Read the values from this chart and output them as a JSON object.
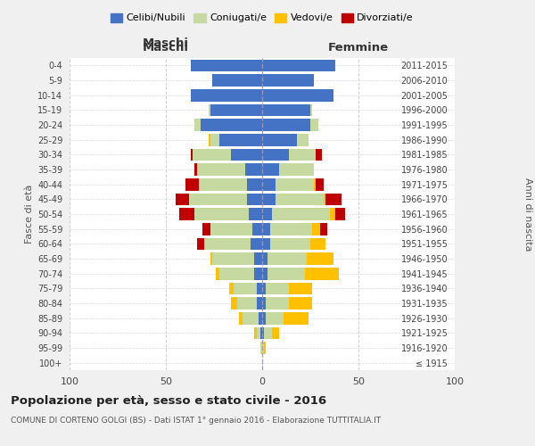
{
  "age_groups": [
    "100+",
    "95-99",
    "90-94",
    "85-89",
    "80-84",
    "75-79",
    "70-74",
    "65-69",
    "60-64",
    "55-59",
    "50-54",
    "45-49",
    "40-44",
    "35-39",
    "30-34",
    "25-29",
    "20-24",
    "15-19",
    "10-14",
    "5-9",
    "0-4"
  ],
  "birth_years": [
    "≤ 1915",
    "1916-1920",
    "1921-1925",
    "1926-1930",
    "1931-1935",
    "1936-1940",
    "1941-1945",
    "1946-1950",
    "1951-1955",
    "1956-1960",
    "1961-1965",
    "1966-1970",
    "1971-1975",
    "1976-1980",
    "1981-1985",
    "1986-1990",
    "1991-1995",
    "1996-2000",
    "2001-2005",
    "2006-2010",
    "2011-2015"
  ],
  "colors": {
    "celibi": "#4472c4",
    "coniugati": "#c5d9a0",
    "vedovi": "#ffc000",
    "divorziati": "#c00000"
  },
  "maschi": {
    "celibi": [
      0,
      0,
      1,
      2,
      3,
      3,
      4,
      4,
      6,
      5,
      7,
      8,
      8,
      9,
      16,
      22,
      32,
      27,
      37,
      26,
      37
    ],
    "coniugati": [
      0,
      1,
      2,
      8,
      10,
      12,
      18,
      22,
      24,
      22,
      28,
      30,
      25,
      25,
      20,
      5,
      3,
      1,
      0,
      0,
      0
    ],
    "vedovi": [
      0,
      0,
      1,
      2,
      3,
      2,
      2,
      1,
      0,
      0,
      0,
      0,
      0,
      0,
      0,
      1,
      0,
      0,
      0,
      0,
      0
    ],
    "divorziati": [
      0,
      0,
      0,
      0,
      0,
      0,
      0,
      0,
      4,
      4,
      8,
      7,
      7,
      1,
      1,
      0,
      0,
      0,
      0,
      0,
      0
    ]
  },
  "femmine": {
    "celibi": [
      0,
      0,
      1,
      2,
      2,
      2,
      3,
      3,
      4,
      4,
      5,
      7,
      7,
      9,
      14,
      18,
      25,
      25,
      37,
      27,
      38
    ],
    "coniugati": [
      0,
      1,
      4,
      9,
      12,
      12,
      19,
      20,
      21,
      22,
      30,
      25,
      20,
      18,
      14,
      6,
      4,
      1,
      0,
      0,
      0
    ],
    "vedovi": [
      0,
      1,
      4,
      13,
      12,
      12,
      18,
      14,
      8,
      4,
      3,
      1,
      1,
      0,
      0,
      0,
      0,
      0,
      0,
      0,
      0
    ],
    "divorziati": [
      0,
      0,
      0,
      0,
      0,
      0,
      0,
      0,
      0,
      4,
      5,
      8,
      4,
      0,
      3,
      0,
      0,
      0,
      0,
      0,
      0
    ]
  },
  "xlim": 100,
  "title": "Popolazione per età, sesso e stato civile - 2016",
  "subtitle": "COMUNE DI CORTENO GOLGI (BS) - Dati ISTAT 1° gennaio 2016 - Elaborazione TUTTITALIA.IT",
  "xlabel_left": "Maschi",
  "xlabel_right": "Femmine",
  "ylabel_left": "Fasce di età",
  "ylabel_right": "Anni di nascita",
  "legend_labels": [
    "Celibi/Nubili",
    "Coniugati/e",
    "Vedovi/e",
    "Divorziati/e"
  ],
  "bg_color": "#f0f0f0",
  "plot_bg": "#ffffff",
  "grid_color": "#cccccc"
}
